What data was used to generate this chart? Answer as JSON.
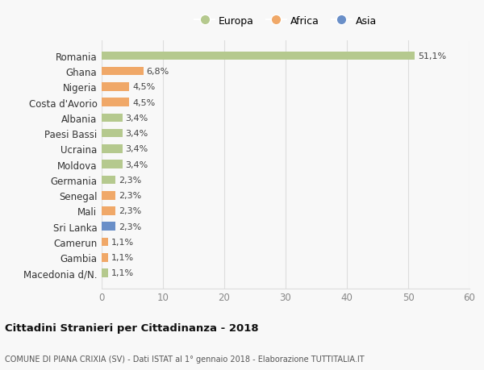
{
  "categories": [
    "Macedonia d/N.",
    "Gambia",
    "Camerun",
    "Sri Lanka",
    "Mali",
    "Senegal",
    "Germania",
    "Moldova",
    "Ucraina",
    "Paesi Bassi",
    "Albania",
    "Costa d'Avorio",
    "Nigeria",
    "Ghana",
    "Romania"
  ],
  "values": [
    1.1,
    1.1,
    1.1,
    2.3,
    2.3,
    2.3,
    2.3,
    3.4,
    3.4,
    3.4,
    3.4,
    4.5,
    4.5,
    6.8,
    51.1
  ],
  "labels": [
    "1,1%",
    "1,1%",
    "1,1%",
    "2,3%",
    "2,3%",
    "2,3%",
    "2,3%",
    "3,4%",
    "3,4%",
    "3,4%",
    "3,4%",
    "4,5%",
    "4,5%",
    "6,8%",
    "51,1%"
  ],
  "bar_colors": [
    "#b5c98e",
    "#f0a868",
    "#f0a868",
    "#6a8fc8",
    "#f0a868",
    "#f0a868",
    "#b5c98e",
    "#b5c98e",
    "#b5c98e",
    "#b5c98e",
    "#b5c98e",
    "#f0a868",
    "#f0a868",
    "#f0a868",
    "#b5c98e"
  ],
  "title": "Cittadini Stranieri per Cittadinanza - 2018",
  "subtitle": "COMUNE DI PIANA CRIXIA (SV) - Dati ISTAT al 1° gennaio 2018 - Elaborazione TUTTITALIA.IT",
  "xlim": [
    0,
    60
  ],
  "xticks": [
    0,
    10,
    20,
    30,
    40,
    50,
    60
  ],
  "bg_color": "#f8f8f8",
  "grid_color": "#dddddd",
  "legend_labels": [
    "Europa",
    "Africa",
    "Asia"
  ],
  "legend_colors": [
    "#b5c98e",
    "#f0a868",
    "#6a8fc8"
  ]
}
